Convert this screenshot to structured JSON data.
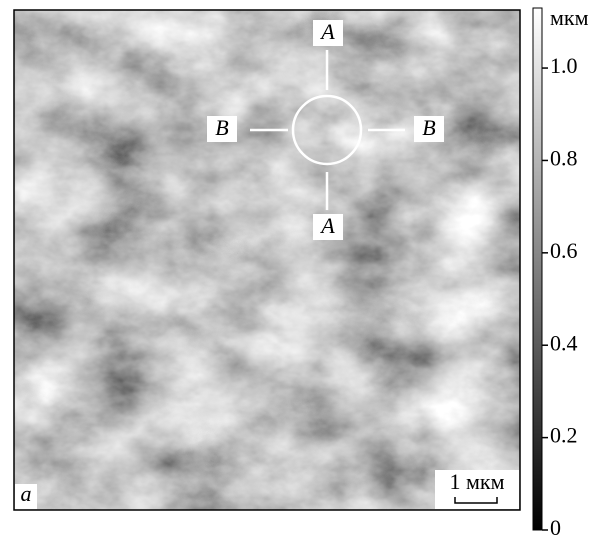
{
  "image": {
    "panel_label": "a",
    "scale_bar": "1 мкм",
    "markers": {
      "top": "A",
      "bottom": "A",
      "left": "B",
      "right": "B"
    }
  },
  "colorbar": {
    "unit": "мкм",
    "range": [
      0,
      1.13
    ],
    "ticks": [
      0,
      0.2,
      0.4,
      0.6,
      0.8,
      {
        "value": 1,
        "label": "1.0"
      }
    ]
  }
}
